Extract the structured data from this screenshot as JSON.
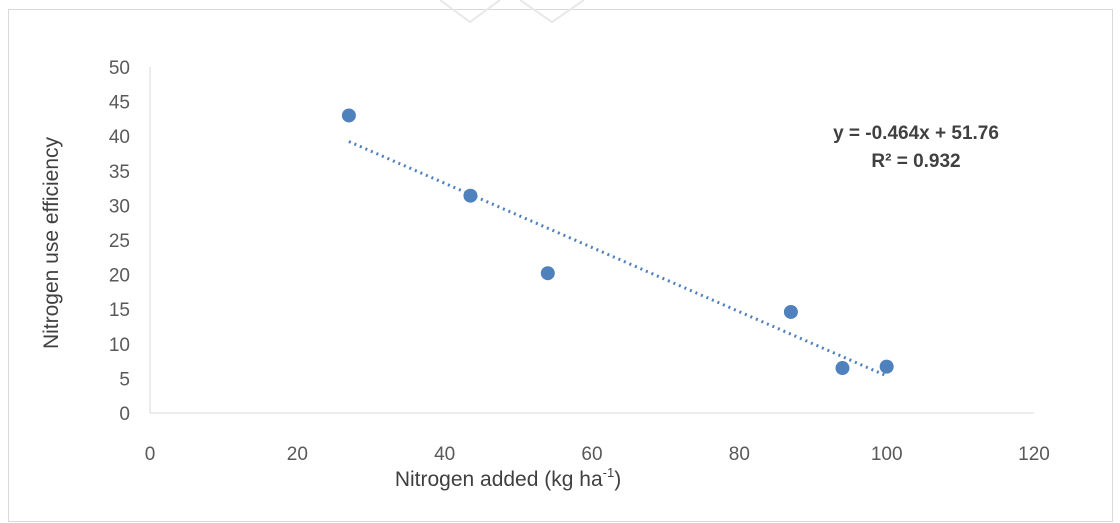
{
  "chart_data": {
    "type": "scatter",
    "title": "",
    "xlabel": "Nitrogen added (kg ha",
    "xlabel_superscript": "-1",
    "xlabel_suffix": ")",
    "ylabel": "Nitrogen use efficiency",
    "xlim": [
      0,
      120
    ],
    "ylim": [
      0,
      50
    ],
    "x_ticks": [
      "0",
      "20",
      "40",
      "60",
      "80",
      "100",
      "120"
    ],
    "y_ticks": [
      "0",
      "5",
      "10",
      "15",
      "20",
      "25",
      "30",
      "35",
      "40",
      "45",
      "50"
    ],
    "grid": false,
    "series": [
      {
        "x": [
          27,
          43.5,
          54,
          87,
          94,
          100
        ],
        "y": [
          43,
          31.4,
          20.2,
          14.6,
          6.5,
          6.7
        ],
        "color": "#4f81bd"
      }
    ],
    "trendline": {
      "type": "linear",
      "slope": -0.464,
      "intercept": 51.76,
      "x_range": [
        27,
        100
      ],
      "color": "#4f81bd",
      "style": "dotted",
      "equation": "y = -0.464x + 51.76",
      "r_squared": "R² = 0.932"
    }
  }
}
